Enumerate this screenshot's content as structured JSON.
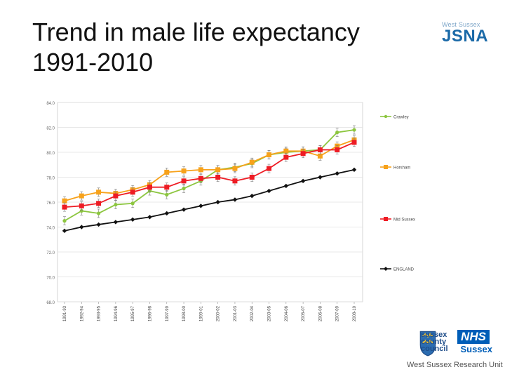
{
  "slide": {
    "title_line1": "Trend in male life expectancy",
    "title_line2": "1991-2010"
  },
  "logos": {
    "jsna_small": "West Sussex",
    "jsna_big": "JSNA",
    "county_line1": "sussex",
    "county_line2": "county",
    "county_line3": "council",
    "nhs": "NHS",
    "nhs_region": "Sussex",
    "research_unit": "West Sussex Research Unit"
  },
  "colors": {
    "crawley": "#8cc63f",
    "horsham": "#f7a21b",
    "mid_sussex": "#ee1c24",
    "england": "#111111",
    "grid": "#e0e0e0"
  },
  "chart_data": {
    "type": "line",
    "title": "",
    "xlabel": "",
    "ylabel": "",
    "ylim": [
      68,
      84
    ],
    "yticks": [
      "68.0",
      "70.0",
      "72.0",
      "74.0",
      "76.0",
      "78.0",
      "80.0",
      "82.0",
      "84.0"
    ],
    "grid": true,
    "legend_position": "right",
    "categories": [
      "1991-93",
      "1992-94",
      "1993-95",
      "1994-96",
      "1995-97",
      "1996-98",
      "1997-99",
      "1998-00",
      "1999-01",
      "2000-02",
      "2001-03",
      "2002-04",
      "2003-05",
      "2004-06",
      "2005-07",
      "2006-08",
      "2007-09",
      "2008-10"
    ],
    "series": [
      {
        "name": "Crawley",
        "color_key": "crawley",
        "marker": "circle",
        "values": [
          74.5,
          75.3,
          75.1,
          75.8,
          75.9,
          76.9,
          76.6,
          77.1,
          77.7,
          78.6,
          78.8,
          79.1,
          79.8,
          80.0,
          80.1,
          80.2,
          81.6,
          81.8
        ]
      },
      {
        "name": "Horsham",
        "color_key": "horsham",
        "marker": "square",
        "values": [
          76.1,
          76.5,
          76.8,
          76.7,
          77.0,
          77.4,
          78.4,
          78.5,
          78.6,
          78.6,
          78.7,
          79.2,
          79.8,
          80.1,
          80.1,
          79.7,
          80.5,
          81.0
        ]
      },
      {
        "name": "Mid Sussex",
        "color_key": "mid_sussex",
        "marker": "square",
        "values": [
          75.6,
          75.7,
          75.9,
          76.5,
          76.8,
          77.2,
          77.2,
          77.7,
          77.9,
          78.0,
          77.7,
          78.0,
          78.7,
          79.6,
          79.9,
          80.2,
          80.2,
          80.8
        ]
      },
      {
        "name": "ENGLAND",
        "color_key": "england",
        "marker": "diamond",
        "values": [
          73.7,
          74.0,
          74.2,
          74.4,
          74.6,
          74.8,
          75.1,
          75.4,
          75.7,
          76.0,
          76.2,
          76.5,
          76.9,
          77.3,
          77.7,
          78.0,
          78.3,
          78.6
        ]
      }
    ]
  }
}
